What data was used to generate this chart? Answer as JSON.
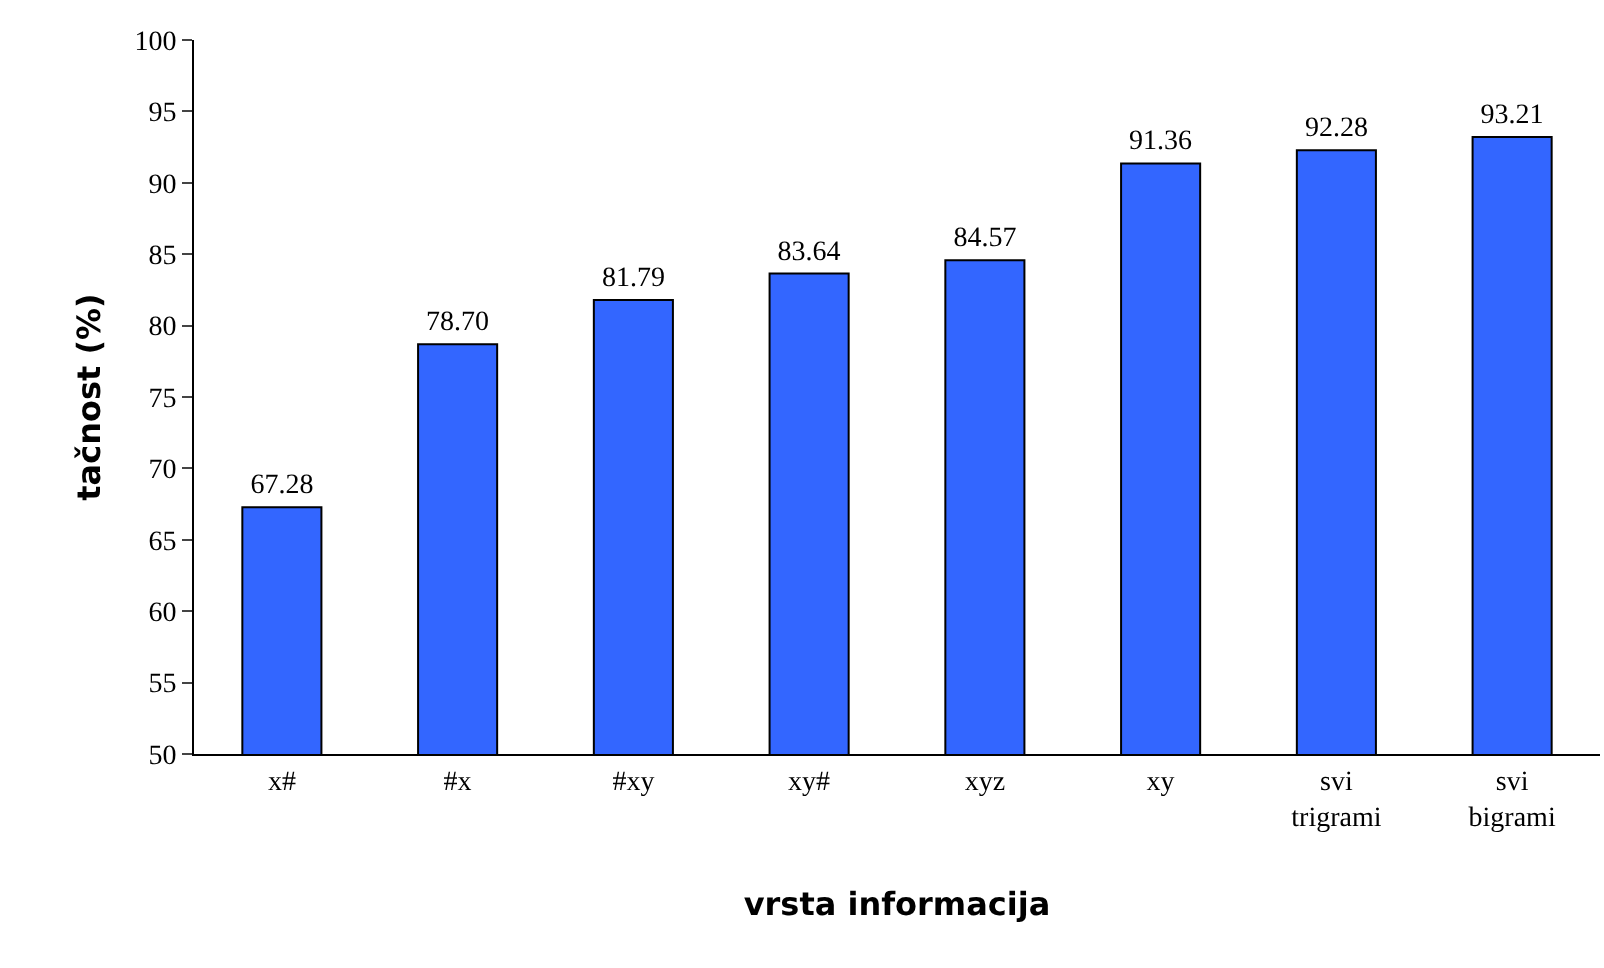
{
  "chart_data": {
    "type": "bar",
    "xlabel": "vrsta informacija",
    "ylabel": "tačnost (%)",
    "categories": [
      "x#",
      "#x",
      "#xy",
      "xy#",
      "xyz",
      "xy",
      "svi\ntrigrami",
      "svi\nbigrami"
    ],
    "values": [
      67.28,
      78.7,
      81.79,
      83.64,
      84.57,
      91.36,
      92.28,
      93.21
    ],
    "value_labels": [
      "67.28",
      "78.70",
      "81.79",
      "83.64",
      "84.57",
      "91.36",
      "92.28",
      "93.21"
    ],
    "color": "#3366ff",
    "ylim": [
      50,
      100
    ],
    "yticks": [
      50,
      55,
      60,
      65,
      70,
      75,
      80,
      85,
      90,
      95,
      100
    ]
  }
}
